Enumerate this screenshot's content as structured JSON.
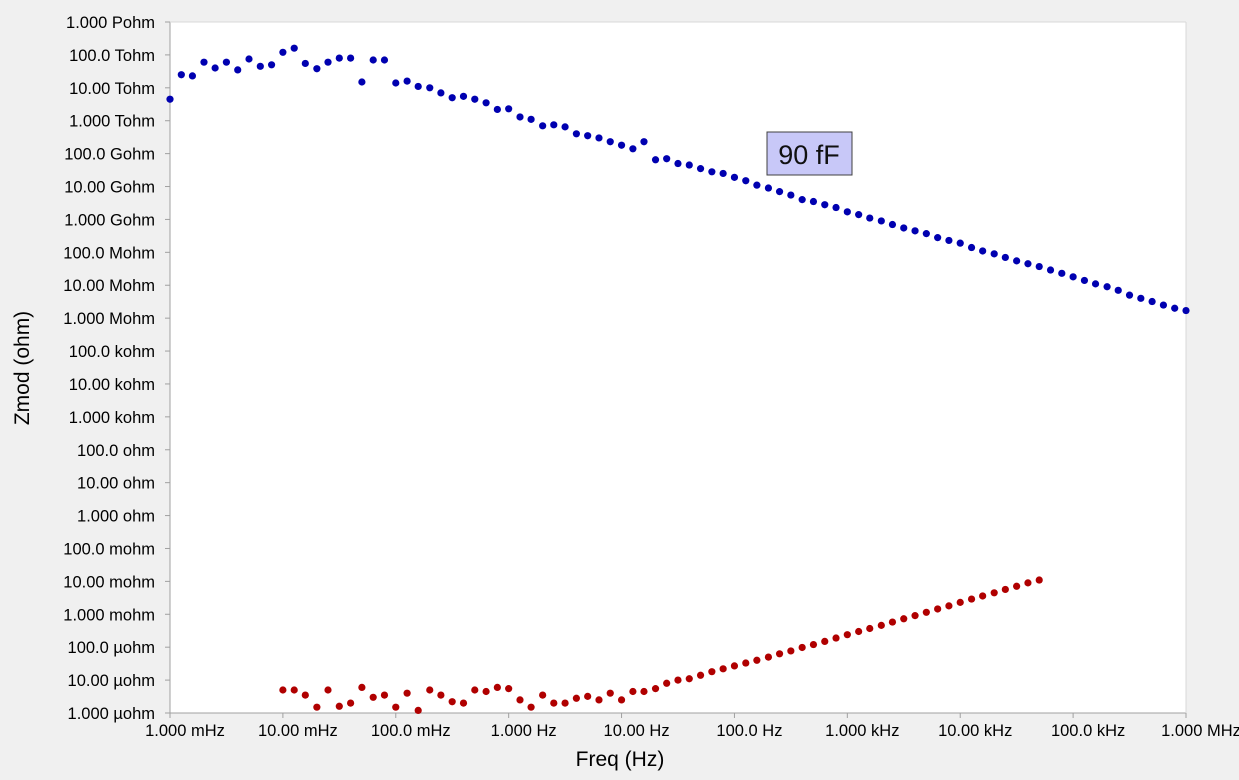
{
  "chart_data": {
    "type": "scatter",
    "xlabel": "Freq (Hz)",
    "ylabel": "Zmod (ohm)",
    "xscale": "log",
    "yscale": "log",
    "xlim": [
      0.001,
      1000000
    ],
    "ylim": [
      1e-06,
      1000000000000000
    ],
    "grid": false,
    "legend": "none",
    "colors": {
      "plot_background": "#ffffff",
      "page_background": "#f0f0f0",
      "axis": "#a0a0a0"
    },
    "x_ticks": [
      {
        "value": 0.001,
        "label": "1.000 mHz"
      },
      {
        "value": 0.01,
        "label": "10.00 mHz"
      },
      {
        "value": 0.1,
        "label": "100.0 mHz"
      },
      {
        "value": 1,
        "label": "1.000 Hz"
      },
      {
        "value": 10,
        "label": "10.00 Hz"
      },
      {
        "value": 100,
        "label": "100.0 Hz"
      },
      {
        "value": 1000,
        "label": "1.000 kHz"
      },
      {
        "value": 10000,
        "label": "10.00 kHz"
      },
      {
        "value": 100000,
        "label": "100.0 kHz"
      },
      {
        "value": 1000000,
        "label": "1.000 MHz"
      }
    ],
    "y_ticks": [
      {
        "value": 1000000000000000.0,
        "label": "1.000 Pohm"
      },
      {
        "value": 100000000000000.0,
        "label": "100.0 Tohm"
      },
      {
        "value": 10000000000000.0,
        "label": "10.00 Tohm"
      },
      {
        "value": 1000000000000.0,
        "label": "1.000 Tohm"
      },
      {
        "value": 100000000000.0,
        "label": "100.0 Gohm"
      },
      {
        "value": 10000000000.0,
        "label": "10.00 Gohm"
      },
      {
        "value": 1000000000.0,
        "label": "1.000 Gohm"
      },
      {
        "value": 100000000.0,
        "label": "100.0 Mohm"
      },
      {
        "value": 10000000.0,
        "label": "10.00 Mohm"
      },
      {
        "value": 1000000.0,
        "label": "1.000 Mohm"
      },
      {
        "value": 100000.0,
        "label": "100.0 kohm"
      },
      {
        "value": 10000.0,
        "label": "10.00 kohm"
      },
      {
        "value": 1000.0,
        "label": "1.000 kohm"
      },
      {
        "value": 100,
        "label": "100.0 ohm"
      },
      {
        "value": 10,
        "label": "10.00 ohm"
      },
      {
        "value": 1,
        "label": "1.000 ohm"
      },
      {
        "value": 0.1,
        "label": "100.0 mohm"
      },
      {
        "value": 0.01,
        "label": "10.00 mohm"
      },
      {
        "value": 0.001,
        "label": "1.000 mohm"
      },
      {
        "value": 0.0001,
        "label": "100.0 µohm"
      },
      {
        "value": 1e-05,
        "label": "10.00 µohm"
      },
      {
        "value": 1e-06,
        "label": "1.000 µohm"
      }
    ],
    "annotation": {
      "text": "90 fF",
      "x": 220,
      "y": 50000000000.0,
      "background": "#c8c8f8"
    },
    "series": [
      {
        "color": "#0000b0",
        "points": [
          [
            0.001,
            4500000000000.0
          ],
          [
            0.00126,
            25000000000000.0
          ],
          [
            0.00158,
            23000000000000.0
          ],
          [
            0.002,
            60000000000000.0
          ],
          [
            0.00251,
            40000000000000.0
          ],
          [
            0.00316,
            60000000000000.0
          ],
          [
            0.00398,
            35000000000000.0
          ],
          [
            0.00501,
            75000000000000.0
          ],
          [
            0.00631,
            45000000000000.0
          ],
          [
            0.00794,
            50000000000000.0
          ],
          [
            0.01,
            120000000000000.0
          ],
          [
            0.0126,
            160000000000000.0
          ],
          [
            0.0158,
            55000000000000.0
          ],
          [
            0.02,
            38000000000000.0
          ],
          [
            0.0251,
            60000000000000.0
          ],
          [
            0.0316,
            80000000000000.0
          ],
          [
            0.0398,
            80000000000000.0
          ],
          [
            0.0501,
            15000000000000.0
          ],
          [
            0.0631,
            70000000000000.0
          ],
          [
            0.0794,
            70000000000000.0
          ],
          [
            0.1,
            14000000000000.0
          ],
          [
            0.126,
            16000000000000.0
          ],
          [
            0.158,
            11000000000000.0
          ],
          [
            0.2,
            10000000000000.0
          ],
          [
            0.251,
            7000000000000.0
          ],
          [
            0.316,
            5000000000000.0
          ],
          [
            0.398,
            5500000000000.0
          ],
          [
            0.501,
            4500000000000.0
          ],
          [
            0.631,
            3500000000000.0
          ],
          [
            0.794,
            2200000000000.0
          ],
          [
            1,
            2300000000000.0
          ],
          [
            1.26,
            1300000000000.0
          ],
          [
            1.58,
            1100000000000.0
          ],
          [
            2,
            700000000000.0
          ],
          [
            2.51,
            750000000000.0
          ],
          [
            3.16,
            650000000000.0
          ],
          [
            3.98,
            400000000000.0
          ],
          [
            5.01,
            350000000000.0
          ],
          [
            6.31,
            300000000000.0
          ],
          [
            7.94,
            230000000000.0
          ],
          [
            10,
            180000000000.0
          ],
          [
            12.6,
            140000000000.0
          ],
          [
            15.8,
            230000000000.0
          ],
          [
            20,
            65000000000.0
          ],
          [
            25.1,
            70000000000.0
          ],
          [
            31.6,
            50000000000.0
          ],
          [
            39.8,
            45000000000.0
          ],
          [
            50.1,
            35000000000.0
          ],
          [
            63.1,
            28000000000.0
          ],
          [
            79.4,
            25000000000.0
          ],
          [
            100,
            19000000000.0
          ],
          [
            126,
            15000000000.0
          ],
          [
            158,
            11000000000.0
          ],
          [
            200,
            9000000000.0
          ],
          [
            251,
            7000000000.0
          ],
          [
            316,
            5500000000.0
          ],
          [
            398,
            4000000000.0
          ],
          [
            501,
            3500000000.0
          ],
          [
            631,
            2800000000.0
          ],
          [
            794,
            2300000000.0
          ],
          [
            1000,
            1700000000.0
          ],
          [
            1260,
            1400000000.0
          ],
          [
            1580,
            1100000000.0
          ],
          [
            2000,
            900000000.0
          ],
          [
            2510,
            700000000.0
          ],
          [
            3160,
            550000000.0
          ],
          [
            3980,
            450000000.0
          ],
          [
            5010,
            370000000.0
          ],
          [
            6310,
            280000000.0
          ],
          [
            7940,
            230000000.0
          ],
          [
            10000,
            190000000.0
          ],
          [
            12600,
            140000000.0
          ],
          [
            15800,
            110000000.0
          ],
          [
            20000,
            90000000.0
          ],
          [
            25100,
            70000000.0
          ],
          [
            31600,
            55000000.0
          ],
          [
            39800,
            45000000.0
          ],
          [
            50100,
            37000000.0
          ],
          [
            63100,
            29000000.0
          ],
          [
            79400,
            23000000.0
          ],
          [
            100000,
            18000000.0
          ],
          [
            126000,
            14000000.0
          ],
          [
            158000,
            11000000.0
          ],
          [
            200000,
            9000000.0
          ],
          [
            251000,
            7000000.0
          ],
          [
            316000,
            5000000.0
          ],
          [
            398000,
            4000000.0
          ],
          [
            501000,
            3200000.0
          ],
          [
            631000,
            2500000.0
          ],
          [
            794000,
            2000000.0
          ],
          [
            1000000,
            1700000.0
          ]
        ]
      },
      {
        "color": "#b00000",
        "points": [
          [
            0.01,
            5e-06
          ],
          [
            0.0126,
            5e-06
          ],
          [
            0.0158,
            3.5e-06
          ],
          [
            0.02,
            1.5e-06
          ],
          [
            0.0251,
            5e-06
          ],
          [
            0.0316,
            1.6e-06
          ],
          [
            0.0398,
            2e-06
          ],
          [
            0.0501,
            6e-06
          ],
          [
            0.0631,
            3e-06
          ],
          [
            0.0794,
            3.5e-06
          ],
          [
            0.1,
            1.5e-06
          ],
          [
            0.126,
            4e-06
          ],
          [
            0.158,
            1.2e-06
          ],
          [
            0.2,
            5e-06
          ],
          [
            0.251,
            3.5e-06
          ],
          [
            0.316,
            2.2e-06
          ],
          [
            0.398,
            2e-06
          ],
          [
            0.501,
            5e-06
          ],
          [
            0.631,
            4.5e-06
          ],
          [
            0.794,
            6e-06
          ],
          [
            1,
            5.5e-06
          ],
          [
            1.26,
            2.5e-06
          ],
          [
            1.58,
            1.5e-06
          ],
          [
            2,
            3.5e-06
          ],
          [
            2.51,
            2e-06
          ],
          [
            3.16,
            2e-06
          ],
          [
            3.98,
            2.8e-06
          ],
          [
            5.01,
            3.2e-06
          ],
          [
            6.31,
            2.5e-06
          ],
          [
            7.94,
            4e-06
          ],
          [
            10,
            2.5e-06
          ],
          [
            12.6,
            4.5e-06
          ],
          [
            15.8,
            4.5e-06
          ],
          [
            20,
            5.5e-06
          ],
          [
            25.1,
            8e-06
          ],
          [
            31.6,
            1e-05
          ],
          [
            39.8,
            1.1e-05
          ],
          [
            50.1,
            1.4e-05
          ],
          [
            63.1,
            1.8e-05
          ],
          [
            79.4,
            2.2e-05
          ],
          [
            100,
            2.7e-05
          ],
          [
            126,
            3.3e-05
          ],
          [
            158,
            4e-05
          ],
          [
            200,
            5e-05
          ],
          [
            251,
            6.3e-05
          ],
          [
            316,
            7.7e-05
          ],
          [
            398,
            9.8e-05
          ],
          [
            501,
            0.00012
          ],
          [
            631,
            0.00015
          ],
          [
            794,
            0.00019
          ],
          [
            1000,
            0.00024
          ],
          [
            1260,
            0.0003
          ],
          [
            1580,
            0.00037
          ],
          [
            2000,
            0.00046
          ],
          [
            2510,
            0.00058
          ],
          [
            3160,
            0.00073
          ],
          [
            3980,
            0.00091
          ],
          [
            5010,
            0.00115
          ],
          [
            6310,
            0.00145
          ],
          [
            7940,
            0.0018
          ],
          [
            10000,
            0.0023
          ],
          [
            12600,
            0.0029
          ],
          [
            15800,
            0.0036
          ],
          [
            20000,
            0.0045
          ],
          [
            25100,
            0.0057
          ],
          [
            31600,
            0.0071
          ],
          [
            39800,
            0.009
          ],
          [
            50100,
            0.011
          ]
        ]
      }
    ]
  }
}
